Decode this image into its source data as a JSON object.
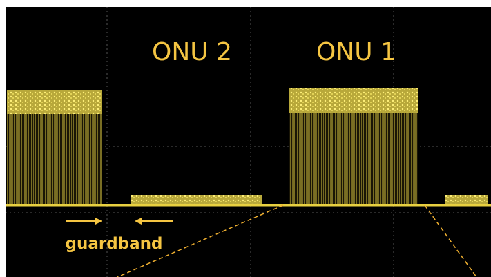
{
  "labels": {
    "onu2": "ONU 2",
    "onu1": "ONU 1",
    "guardband": "guardband"
  }
}
